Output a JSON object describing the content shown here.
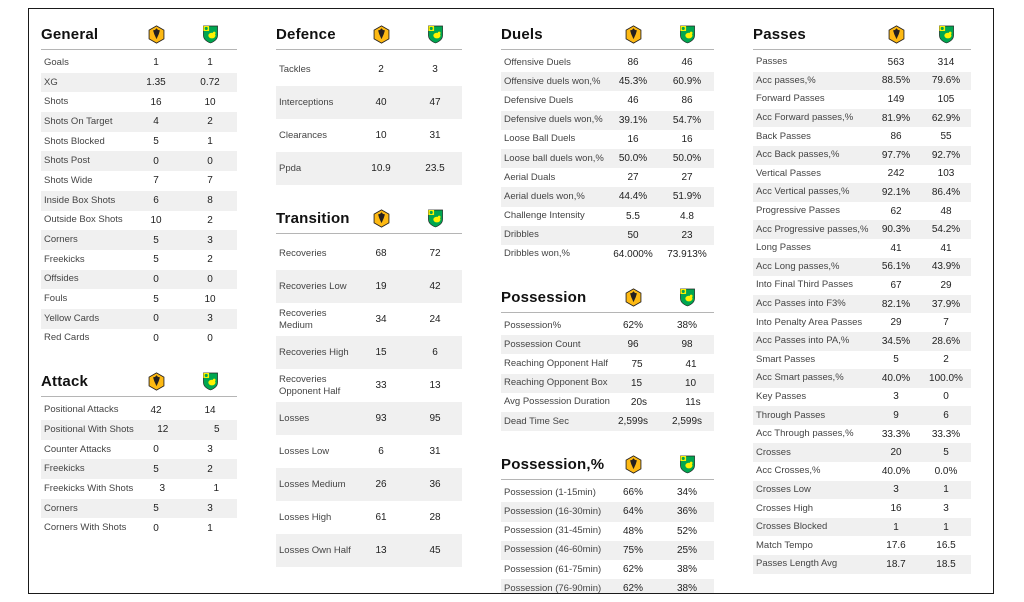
{
  "colors": {
    "home_primary": "#FDB913",
    "home_secondary": "#231F20",
    "away_primary": "#00A650",
    "away_secondary": "#FFF200",
    "stripe": "#f0f0f0",
    "border": "#1a1a1a",
    "header_line": "#b5b5b5",
    "text": "#333333",
    "title": "#111111"
  },
  "teams": {
    "home_icon": "wolves-crest-icon",
    "away_icon": "norwich-crest-icon"
  },
  "chart_data": {
    "type": "table",
    "legend_position": "section-header-badges",
    "value_columns": [
      "home-team",
      "away-team"
    ],
    "sections": [
      {
        "title": "General",
        "column": 0,
        "rows": [
          [
            "Goals",
            "1",
            "1"
          ],
          [
            "XG",
            "1.35",
            "0.72"
          ],
          [
            "Shots",
            "16",
            "10"
          ],
          [
            "Shots On Target",
            "4",
            "2"
          ],
          [
            "Shots Blocked",
            "5",
            "1"
          ],
          [
            "Shots Post",
            "0",
            "0"
          ],
          [
            "Shots Wide",
            "7",
            "7"
          ],
          [
            "Inside Box Shots",
            "6",
            "8"
          ],
          [
            "Outside Box Shots",
            "10",
            "2"
          ],
          [
            "Corners",
            "5",
            "3"
          ],
          [
            "Freekicks",
            "5",
            "2"
          ],
          [
            "Offsides",
            "0",
            "0"
          ],
          [
            "Fouls",
            "5",
            "10"
          ],
          [
            "Yellow Cards",
            "0",
            "3"
          ],
          [
            "Red Cards",
            "0",
            "0"
          ]
        ]
      },
      {
        "title": "Attack",
        "column": 0,
        "rows": [
          [
            "Positional Attacks",
            "42",
            "14"
          ],
          [
            "Positional With Shots",
            "12",
            "5"
          ],
          [
            "Counter Attacks",
            "0",
            "3"
          ],
          [
            "Freekicks",
            "5",
            "2"
          ],
          [
            "Freekicks With Shots",
            "3",
            "1"
          ],
          [
            "Corners",
            "5",
            "3"
          ],
          [
            "Corners With Shots",
            "0",
            "1"
          ]
        ]
      },
      {
        "title": "Defence",
        "column": 1,
        "rows": [
          [
            "Tackles",
            "2",
            "3"
          ],
          [
            "Interceptions",
            "40",
            "47"
          ],
          [
            "Clearances",
            "10",
            "31"
          ],
          [
            "Ppda",
            "10.9",
            "23.5"
          ]
        ]
      },
      {
        "title": "Transition",
        "column": 1,
        "rows": [
          [
            "Recoveries",
            "68",
            "72"
          ],
          [
            "Recoveries Low",
            "19",
            "42"
          ],
          [
            "Recoveries Medium",
            "34",
            "24"
          ],
          [
            "Recoveries High",
            "15",
            "6"
          ],
          [
            "Recoveries Opponent Half",
            "33",
            "13"
          ],
          [
            "Losses",
            "93",
            "95"
          ],
          [
            "Losses Low",
            "6",
            "31"
          ],
          [
            "Losses Medium",
            "26",
            "36"
          ],
          [
            "Losses High",
            "61",
            "28"
          ],
          [
            "Losses Own Half",
            "13",
            "45"
          ]
        ]
      },
      {
        "title": "Duels",
        "column": 2,
        "rows": [
          [
            "Offensive Duels",
            "86",
            "46"
          ],
          [
            "Offensive duels won,%",
            "45.3%",
            "60.9%"
          ],
          [
            "Defensive Duels",
            "46",
            "86"
          ],
          [
            "Defensive duels won,%",
            "39.1%",
            "54.7%"
          ],
          [
            "Loose Ball Duels",
            "16",
            "16"
          ],
          [
            "Loose ball duels won,%",
            "50.0%",
            "50.0%"
          ],
          [
            "Aerial Duals",
            "27",
            "27"
          ],
          [
            "Aerial duels won,%",
            "44.4%",
            "51.9%"
          ],
          [
            "Challenge Intensity",
            "5.5",
            "4.8"
          ],
          [
            "Dribbles",
            "50",
            "23"
          ],
          [
            "Dribbles won,%",
            "64.000%",
            "73.913%"
          ]
        ]
      },
      {
        "title": "Possession",
        "column": 2,
        "rows": [
          [
            "Possession%",
            "62%",
            "38%"
          ],
          [
            "Possession Count",
            "96",
            "98"
          ],
          [
            "Reaching Opponent Half",
            "75",
            "41"
          ],
          [
            "Reaching Opponent Box",
            "15",
            "10"
          ],
          [
            "Avg Possession Duration",
            "20s",
            "11s"
          ],
          [
            "Dead Time Sec",
            "2,599s",
            "2,599s"
          ]
        ]
      },
      {
        "title": "Possession,%",
        "column": 2,
        "rows": [
          [
            "Possession (1-15min)",
            "66%",
            "34%"
          ],
          [
            "Possession (16-30min)",
            "64%",
            "36%"
          ],
          [
            "Possession (31-45min)",
            "48%",
            "52%"
          ],
          [
            "Possession (46-60min)",
            "75%",
            "25%"
          ],
          [
            "Possession (61-75min)",
            "62%",
            "38%"
          ],
          [
            "Possession (76-90min)",
            "62%",
            "38%"
          ]
        ]
      },
      {
        "title": "Passes",
        "column": 3,
        "rows": [
          [
            "Passes",
            "563",
            "314"
          ],
          [
            "Acc passes,%",
            "88.5%",
            "79.6%"
          ],
          [
            "Forward Passes",
            "149",
            "105"
          ],
          [
            "Acc Forward passes,%",
            "81.9%",
            "62.9%"
          ],
          [
            "Back Passes",
            "86",
            "55"
          ],
          [
            "Acc Back passes,%",
            "97.7%",
            "92.7%"
          ],
          [
            "Vertical Passes",
            "242",
            "103"
          ],
          [
            "Acc Vertical passes,%",
            "92.1%",
            "86.4%"
          ],
          [
            "Progressive Passes",
            "62",
            "48"
          ],
          [
            "Acc Progressive passes,%",
            "90.3%",
            "54.2%"
          ],
          [
            "Long Passes",
            "41",
            "41"
          ],
          [
            "Acc Long passes,%",
            "56.1%",
            "43.9%"
          ],
          [
            "Into Final Third Passes",
            "67",
            "29"
          ],
          [
            "Acc Passes into F3%",
            "82.1%",
            "37.9%"
          ],
          [
            "Into Penalty Area Passes",
            "29",
            "7"
          ],
          [
            "Acc Passes into PA,%",
            "34.5%",
            "28.6%"
          ],
          [
            "Smart Passes",
            "5",
            "2"
          ],
          [
            "Acc Smart passes,%",
            "40.0%",
            "100.0%"
          ],
          [
            "Key Passes",
            "3",
            "0"
          ],
          [
            "Through Passes",
            "9",
            "6"
          ],
          [
            "Acc Through passes,%",
            "33.3%",
            "33.3%"
          ],
          [
            "Crosses",
            "20",
            "5"
          ],
          [
            "Acc Crosses,%",
            "40.0%",
            "0.0%"
          ],
          [
            "Crosses Low",
            "3",
            "1"
          ],
          [
            "Crosses High",
            "16",
            "3"
          ],
          [
            "Crosses Blocked",
            "1",
            "1"
          ],
          [
            "Match Tempo",
            "17.6",
            "16.5"
          ],
          [
            "Passes Length Avg",
            "18.7",
            "18.5"
          ]
        ]
      }
    ]
  }
}
